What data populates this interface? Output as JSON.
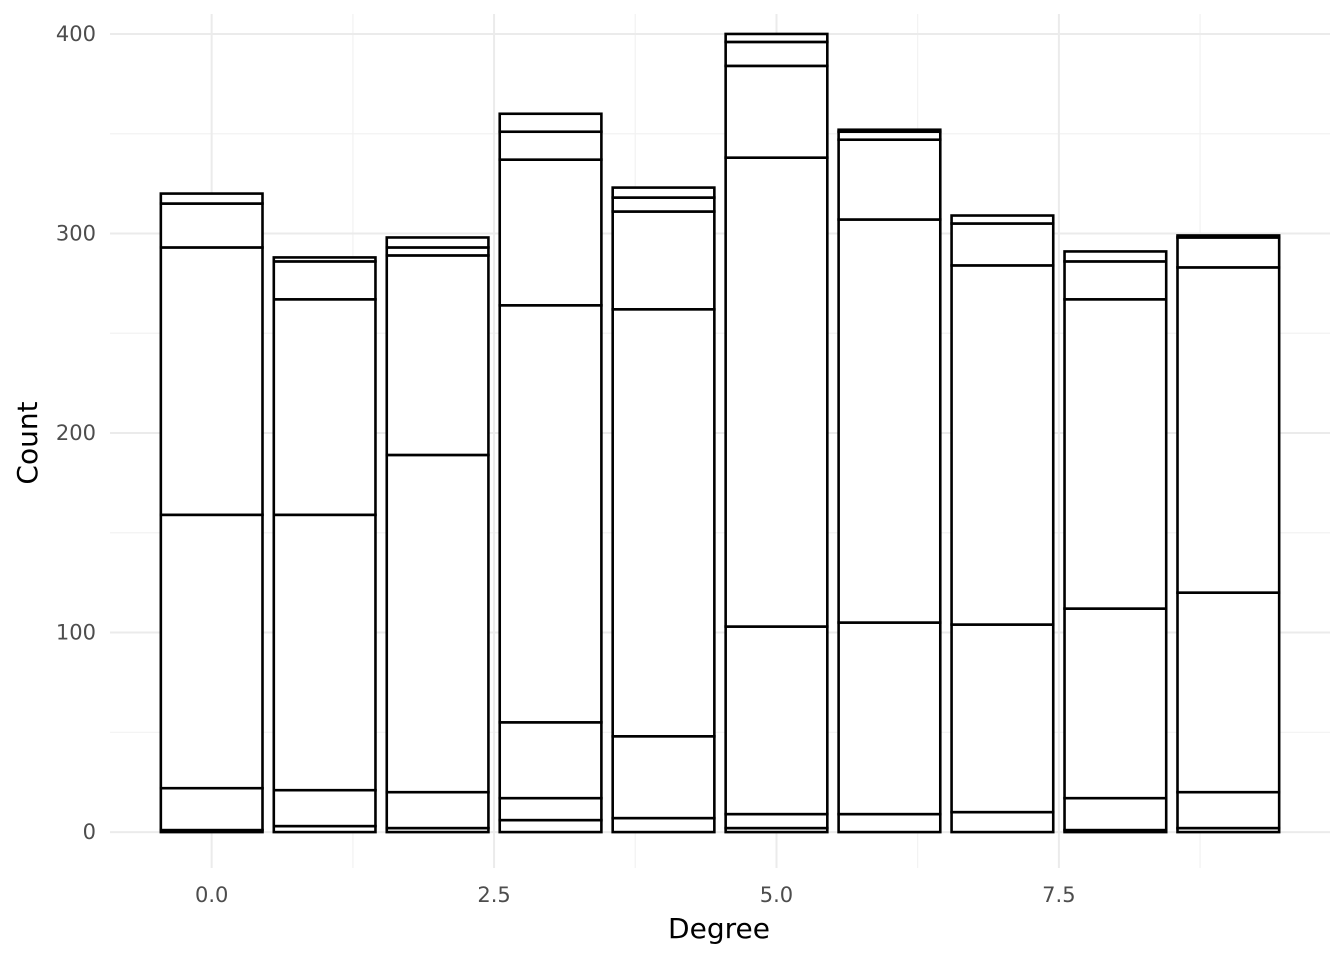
{
  "chart_data": {
    "type": "bar",
    "stacked": true,
    "xlabel": "Degree",
    "ylabel": "Count",
    "xlim": [
      -0.9,
      9.9
    ],
    "ylim": [
      -18,
      410
    ],
    "x_ticks": [
      0.0,
      2.5,
      5.0,
      7.5
    ],
    "x_tick_labels": [
      "0.0",
      "2.5",
      "5.0",
      "7.5"
    ],
    "y_ticks": [
      0,
      100,
      200,
      300,
      400
    ],
    "y_tick_labels": [
      "0",
      "100",
      "200",
      "300",
      "400"
    ],
    "bar_width": 0.9,
    "grid": true,
    "legend": "none",
    "colors": {
      "bar_fill": "#ffffff",
      "bar_outline": "#000000",
      "grid": "#ebebeb"
    },
    "bars": [
      {
        "x": 0,
        "boundaries": [
          0,
          1,
          22,
          159,
          293,
          315,
          320
        ]
      },
      {
        "x": 1,
        "boundaries": [
          0,
          3,
          21,
          159,
          267,
          286,
          288
        ]
      },
      {
        "x": 2,
        "boundaries": [
          0,
          2,
          20,
          189,
          289,
          293,
          298
        ]
      },
      {
        "x": 3,
        "boundaries": [
          0,
          6,
          17,
          55,
          264,
          337,
          351,
          360
        ]
      },
      {
        "x": 4,
        "boundaries": [
          0,
          7,
          48,
          262,
          311,
          318,
          323
        ]
      },
      {
        "x": 5,
        "boundaries": [
          0,
          2,
          9,
          103,
          338,
          384,
          396,
          400
        ]
      },
      {
        "x": 6,
        "boundaries": [
          0,
          9,
          105,
          307,
          347,
          351,
          352
        ]
      },
      {
        "x": 7,
        "boundaries": [
          0,
          10,
          104,
          284,
          305,
          309
        ]
      },
      {
        "x": 8,
        "boundaries": [
          0,
          1,
          17,
          112,
          267,
          286,
          291
        ]
      },
      {
        "x": 9,
        "boundaries": [
          0,
          2,
          20,
          120,
          283,
          298,
          299
        ]
      }
    ]
  }
}
